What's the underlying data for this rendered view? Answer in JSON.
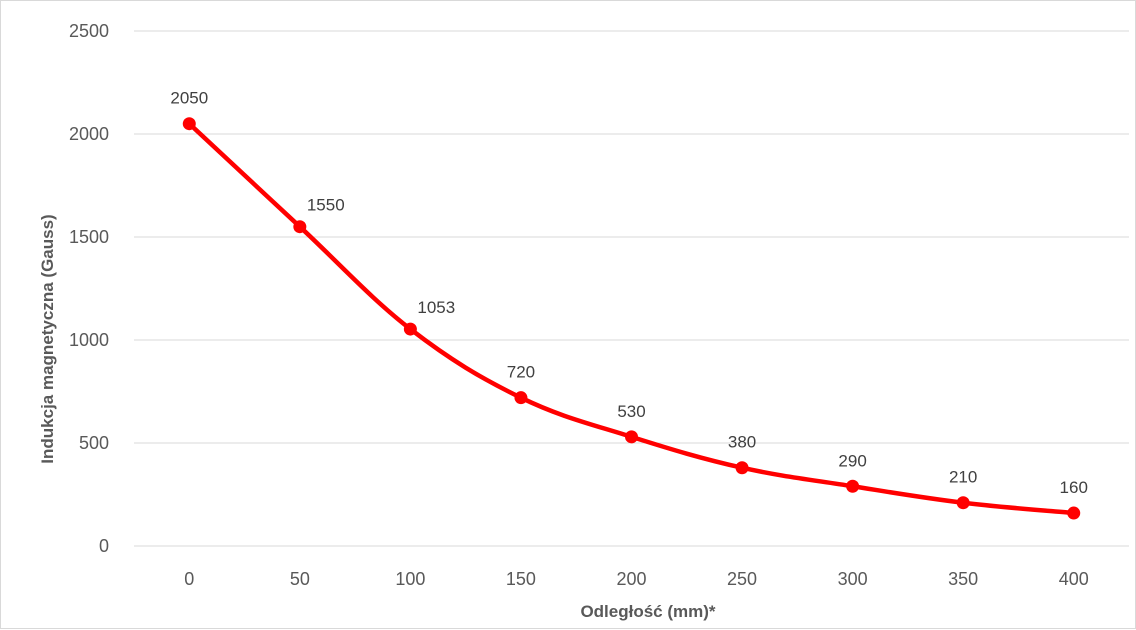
{
  "chart_data": {
    "type": "line",
    "title": "",
    "xlabel": "Odległość (mm)*",
    "ylabel": "Indukcja magnetyczna (Gauss)",
    "x": [
      0,
      50,
      100,
      150,
      200,
      250,
      300,
      350,
      400
    ],
    "series": [
      {
        "values": [
          2050,
          1550,
          1053,
          720,
          530,
          380,
          290,
          210,
          160
        ],
        "color": "#ff0000"
      }
    ],
    "ylim": [
      0,
      2500
    ],
    "yticks": [
      0,
      500,
      1000,
      1500,
      2000,
      2500
    ],
    "grid": true,
    "legend": "none",
    "data_labels": true
  }
}
